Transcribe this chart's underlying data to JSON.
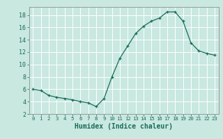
{
  "x": [
    0,
    1,
    2,
    3,
    4,
    5,
    6,
    7,
    8,
    9,
    10,
    11,
    12,
    13,
    14,
    15,
    16,
    17,
    18,
    19,
    20,
    21,
    22,
    23
  ],
  "y": [
    6.0,
    5.8,
    5.0,
    4.7,
    4.5,
    4.3,
    4.0,
    3.8,
    3.2,
    4.5,
    8.0,
    11.0,
    13.0,
    15.0,
    16.2,
    17.0,
    17.5,
    18.5,
    18.5,
    17.0,
    13.5,
    12.2,
    11.8,
    11.5
  ],
  "ylim": [
    2,
    19
  ],
  "xlim": [
    -0.5,
    23.5
  ],
  "yticks": [
    2,
    4,
    6,
    8,
    10,
    12,
    14,
    16,
    18
  ],
  "xticks": [
    0,
    1,
    2,
    3,
    4,
    5,
    6,
    7,
    8,
    9,
    10,
    11,
    12,
    13,
    14,
    15,
    16,
    17,
    18,
    19,
    20,
    21,
    22,
    23
  ],
  "xlabel": "Humidex (Indice chaleur)",
  "line_color": "#1a6b5a",
  "marker_color": "#1a6b5a",
  "bg_color": "#c8e8e0",
  "grid_color": "#ffffff",
  "xlabel_color": "#1a6b5a",
  "tick_color": "#1a6b5a",
  "axis_color": "#999999",
  "figsize": [
    3.2,
    2.0
  ],
  "dpi": 100
}
